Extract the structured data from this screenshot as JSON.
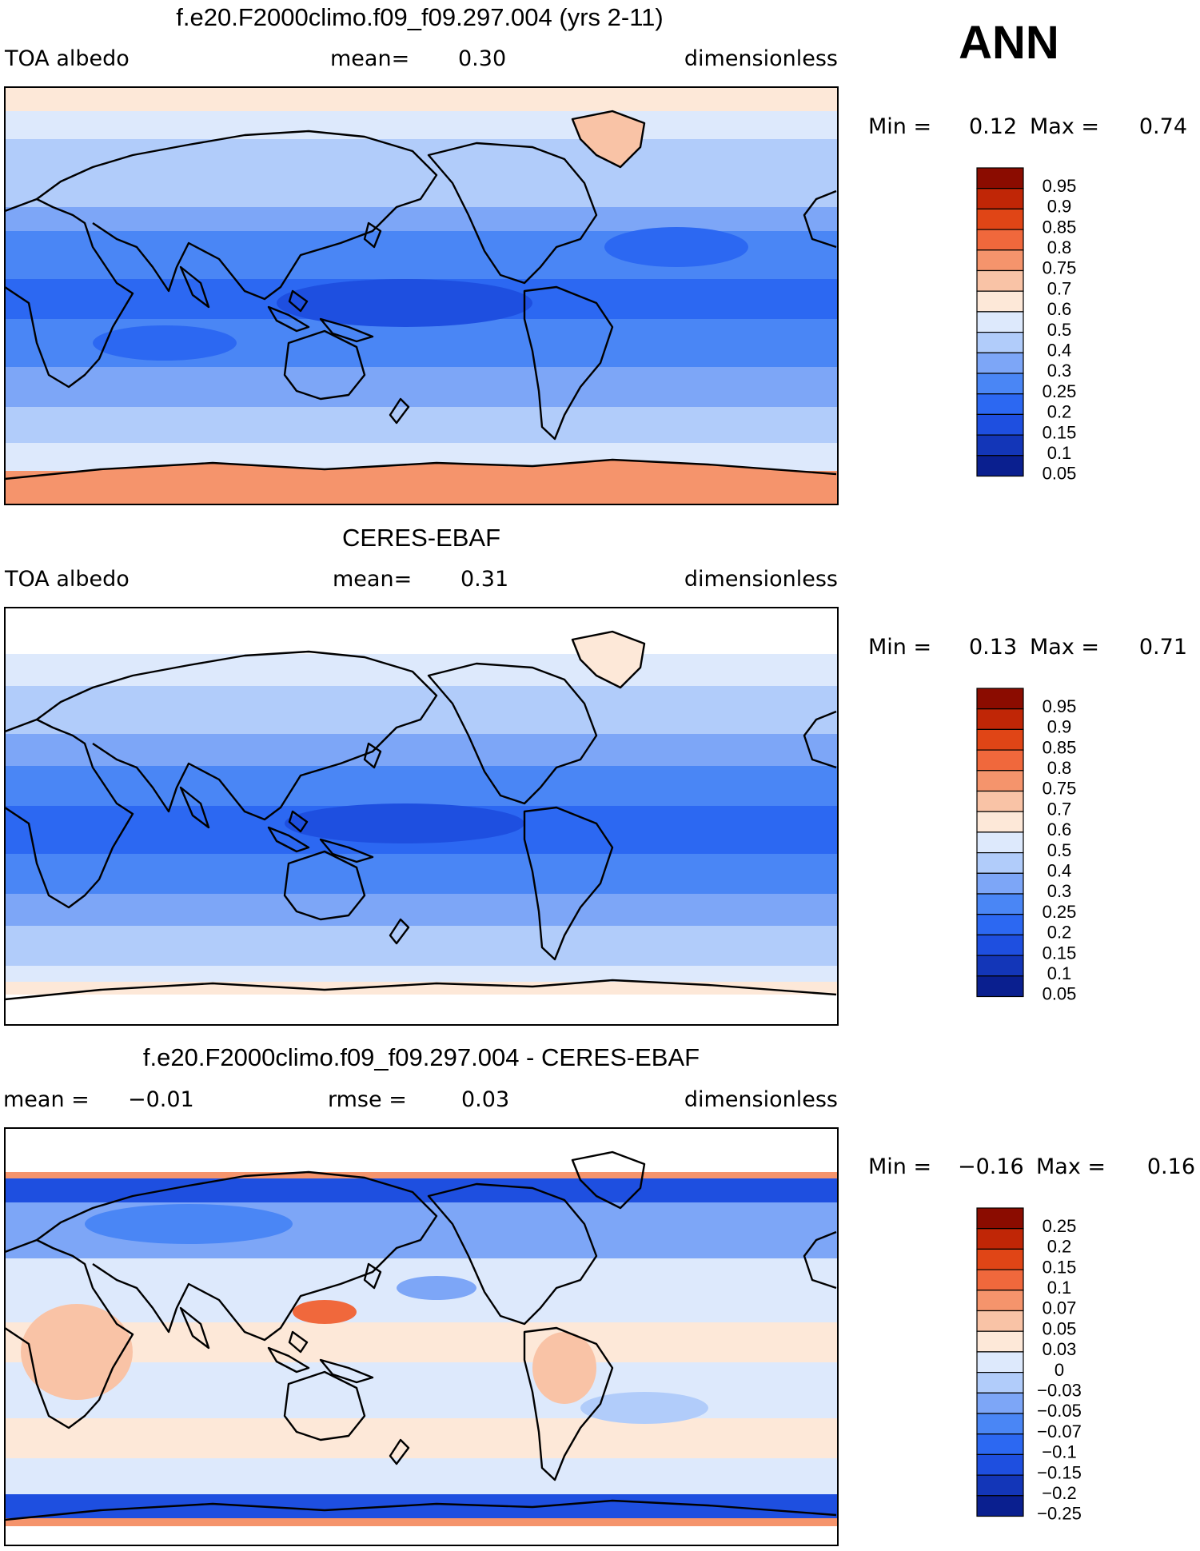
{
  "season": "ANN",
  "colors": {
    "abs_scale": [
      "#0a1f8f",
      "#1336b8",
      "#1e4fe0",
      "#2c68f2",
      "#4a86f5",
      "#7da6f7",
      "#b1ccfa",
      "#dde9fc",
      "#fde8d8",
      "#f9c3a6",
      "#f5946c",
      "#f0683c",
      "#e04516",
      "#c02606",
      "#8b0c00"
    ],
    "diff_scale": [
      "#0a1f8f",
      "#1336b8",
      "#1e4fe0",
      "#2c68f2",
      "#4a86f5",
      "#7da6f7",
      "#b1ccfa",
      "#dde9fc",
      "#fde8d8",
      "#f9c3a6",
      "#f5946c",
      "#f0683c",
      "#e04516",
      "#c02606",
      "#8b0c00"
    ]
  },
  "panels": [
    {
      "title": "f.e20.F2000climo.f09_f09.297.004 (yrs 2-11)",
      "left": "TOA albedo",
      "mid_label": "mean=",
      "mid_value": "0.30",
      "right": "dimensionless",
      "min_label": "Min =",
      "min_value": "0.12",
      "max_label": "Max =",
      "max_value": "0.74",
      "colorbar": [
        "0.95",
        "0.9",
        "0.85",
        "0.8",
        "0.75",
        "0.7",
        "0.6",
        "0.5",
        "0.4",
        "0.3",
        "0.25",
        "0.2",
        "0.15",
        "0.1",
        "0.05"
      ]
    },
    {
      "title": "CERES-EBAF",
      "left": "TOA albedo",
      "mid_label": "mean=",
      "mid_value": "0.31",
      "right": "dimensionless",
      "min_label": "Min =",
      "min_value": "0.13",
      "max_label": "Max =",
      "max_value": "0.71",
      "colorbar": [
        "0.95",
        "0.9",
        "0.85",
        "0.8",
        "0.75",
        "0.7",
        "0.6",
        "0.5",
        "0.4",
        "0.3",
        "0.25",
        "0.2",
        "0.15",
        "0.1",
        "0.05"
      ]
    },
    {
      "title": "f.e20.F2000climo.f09_f09.297.004 - CERES-EBAF",
      "left_label": "mean =",
      "left_value": "−0.01",
      "mid_label": "rmse =",
      "mid_value": "0.03",
      "right": "dimensionless",
      "min_label": "Min =",
      "min_value": "−0.16",
      "max_label": "Max =",
      "max_value": "0.16",
      "colorbar": [
        "0.25",
        "0.2",
        "0.15",
        "0.1",
        "0.07",
        "0.05",
        "0.03",
        "0",
        "−0.03",
        "−0.05",
        "−0.07",
        "−0.1",
        "−0.15",
        "−0.2",
        "−0.25"
      ]
    }
  ]
}
